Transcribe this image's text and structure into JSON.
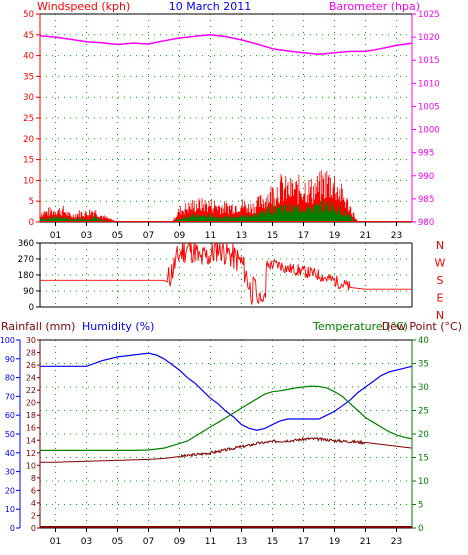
{
  "colors": {
    "wind": "#ff0000",
    "gust_green": "#008000",
    "baro": "#ff00ff",
    "date": "#0000ff",
    "winddir": "#ff0000",
    "humidity": "#0000ff",
    "temperature": "#008000",
    "dewpoint": "#800000",
    "rain": "#800000",
    "rain_axis": "#0000ff",
    "humidity_axis": "#800000",
    "temp_axis": "#008000",
    "grid": "#00aa00",
    "axis": "#000000"
  },
  "chart_data": [
    {
      "type": "line",
      "name": "wind_baro",
      "header": {
        "left": "Windspeed (kph)",
        "center": "10 March 2011",
        "right": "Barometer (hpa)"
      },
      "x_ticks": [
        "01",
        "03",
        "05",
        "07",
        "09",
        "11",
        "13",
        "15",
        "17",
        "19",
        "21",
        "23"
      ],
      "y_left": {
        "range": [
          0,
          50
        ],
        "ticks": [
          0,
          5,
          10,
          15,
          20,
          25,
          30,
          35,
          40,
          45,
          50
        ]
      },
      "y_right": {
        "range": [
          980,
          1025
        ],
        "ticks": [
          980,
          985,
          990,
          995,
          1000,
          1005,
          1010,
          1015,
          1020,
          1025
        ]
      },
      "barometer": {
        "x": [
          0,
          1,
          2,
          3,
          4,
          5,
          6,
          7,
          8,
          9,
          10,
          11,
          12,
          13,
          14,
          15,
          16,
          17,
          18,
          19,
          20,
          21,
          22,
          23,
          24
        ],
        "y": [
          1020.3,
          1020,
          1019.5,
          1019,
          1018.8,
          1018.4,
          1018.7,
          1018.5,
          1019.2,
          1019.8,
          1020.2,
          1020.5,
          1020.1,
          1019.4,
          1018.5,
          1017.5,
          1017,
          1016.6,
          1016.3,
          1016.6,
          1016.9,
          1016.9,
          1017.5,
          1018.2,
          1018.7
        ]
      },
      "wind_envelope": {
        "x": [
          0,
          1,
          1.5,
          2,
          2.5,
          3,
          3.5,
          4,
          5,
          6,
          7,
          8,
          8.5,
          9,
          9.5,
          10,
          11,
          12,
          13,
          13.5,
          14,
          14.5,
          15,
          15.5,
          16,
          16.5,
          17,
          17.5,
          18,
          18.5,
          19,
          19.5,
          20,
          20.5,
          21,
          22,
          23,
          24
        ],
        "y": [
          3,
          4,
          4,
          2,
          3,
          3,
          4,
          2,
          0,
          0,
          0,
          0,
          0,
          4,
          5,
          6,
          6,
          5,
          6,
          5,
          6,
          8,
          10,
          12,
          11,
          11,
          12,
          11,
          12,
          14,
          13,
          9,
          5,
          0,
          0,
          0,
          0,
          0
        ],
        "mean": [
          1,
          1.5,
          1.5,
          0.8,
          1,
          1,
          1.5,
          0.6,
          0,
          0,
          0,
          0,
          0,
          1,
          2,
          2,
          2,
          1.5,
          2,
          2,
          2.5,
          3.5,
          4.5,
          5,
          4.5,
          4.5,
          5,
          4.5,
          5,
          5.5,
          5,
          3.5,
          1.5,
          0,
          0,
          0,
          0,
          0
        ]
      }
    },
    {
      "type": "line",
      "name": "wind_direction",
      "y_left": {
        "range": [
          0,
          360
        ],
        "ticks": [
          0,
          90,
          180,
          270,
          360
        ]
      },
      "y_right_labels": [
        "N",
        "W",
        "S",
        "E",
        "N"
      ],
      "direction": {
        "x": [
          0,
          8,
          8.2,
          8.5,
          9,
          9.5,
          10,
          10.3,
          10.6,
          11,
          11.5,
          12,
          12.5,
          13,
          13.3,
          13.6,
          14,
          14.5,
          15,
          15.5,
          16,
          16.5,
          17,
          17.5,
          18,
          18.5,
          19,
          19.5,
          20,
          21,
          22,
          23,
          24
        ],
        "y": [
          150,
          150,
          140,
          200,
          300,
          330,
          320,
          260,
          280,
          290,
          340,
          310,
          280,
          250,
          180,
          90,
          100,
          230,
          240,
          235,
          215,
          210,
          200,
          190,
          180,
          160,
          150,
          130,
          110,
          100,
          100,
          100,
          100
        ]
      }
    },
    {
      "type": "line",
      "name": "temp_humidity_rain",
      "header": {
        "left_rain": "Rainfall (mm)",
        "left_humidity": "Humidity (%)",
        "right_temp": "Temperature (°C)",
        "right_dew": "Dew Point (°C)"
      },
      "y_rain": {
        "range": [
          0,
          100
        ],
        "ticks": [
          0,
          10,
          20,
          30,
          40,
          50,
          60,
          70,
          80,
          90,
          100
        ]
      },
      "y_humidity": {
        "range": [
          0,
          30
        ],
        "ticks": [
          0,
          2,
          4,
          6,
          8,
          10,
          12,
          14,
          16,
          18,
          20,
          22,
          24,
          26,
          28,
          30
        ]
      },
      "y_temp": {
        "range": [
          0,
          40
        ],
        "ticks": [
          0,
          5,
          10,
          15,
          20,
          25,
          30,
          35,
          40
        ]
      },
      "x": [
        0,
        1,
        2,
        3,
        4,
        5,
        6,
        7,
        7.5,
        8,
        8.5,
        9,
        9.5,
        10,
        10.5,
        11,
        11.5,
        12,
        12.5,
        13,
        13.5,
        14,
        14.5,
        15,
        15.5,
        16,
        16.5,
        17,
        17.5,
        18,
        18.5,
        19,
        19.5,
        20,
        20.5,
        21,
        21.5,
        22,
        22.5,
        23,
        23.5,
        24
      ],
      "humidity_pct": [
        86,
        86,
        86,
        86,
        89,
        91,
        92,
        93,
        92,
        90,
        87,
        84,
        80,
        77,
        73,
        69,
        66,
        62,
        59,
        55,
        53,
        52,
        53,
        55,
        57,
        58,
        58,
        58,
        58,
        58,
        60,
        62,
        65,
        68,
        72,
        75,
        78,
        81,
        83,
        84,
        85,
        86
      ],
      "temperature_c": [
        16.5,
        16.5,
        16.5,
        16.5,
        16.5,
        16.5,
        16.5,
        16.6,
        16.8,
        17,
        17.5,
        18,
        18.5,
        19.5,
        20.5,
        21.5,
        22.5,
        23.5,
        24.5,
        25.5,
        26.5,
        27.5,
        28.5,
        29,
        29.2,
        29.5,
        29.8,
        30,
        30.2,
        30.1,
        29.8,
        29,
        28,
        26.5,
        25,
        23.5,
        22.5,
        21.5,
        20.5,
        19.8,
        19.3,
        19
      ],
      "dewpoint_c": [
        14,
        14,
        14.1,
        14.2,
        14.3,
        14.4,
        14.5,
        14.6,
        14.7,
        14.8,
        15,
        15.2,
        15.4,
        15.6,
        15.8,
        16,
        16.3,
        16.6,
        17,
        17.3,
        17.6,
        18,
        18.2,
        18.4,
        18.5,
        18.6,
        18.7,
        18.9,
        19,
        18.9,
        18.8,
        18.6,
        18.5,
        18.4,
        18.3,
        18.2,
        18,
        17.8,
        17.6,
        17.4,
        17.2,
        17
      ]
    }
  ]
}
